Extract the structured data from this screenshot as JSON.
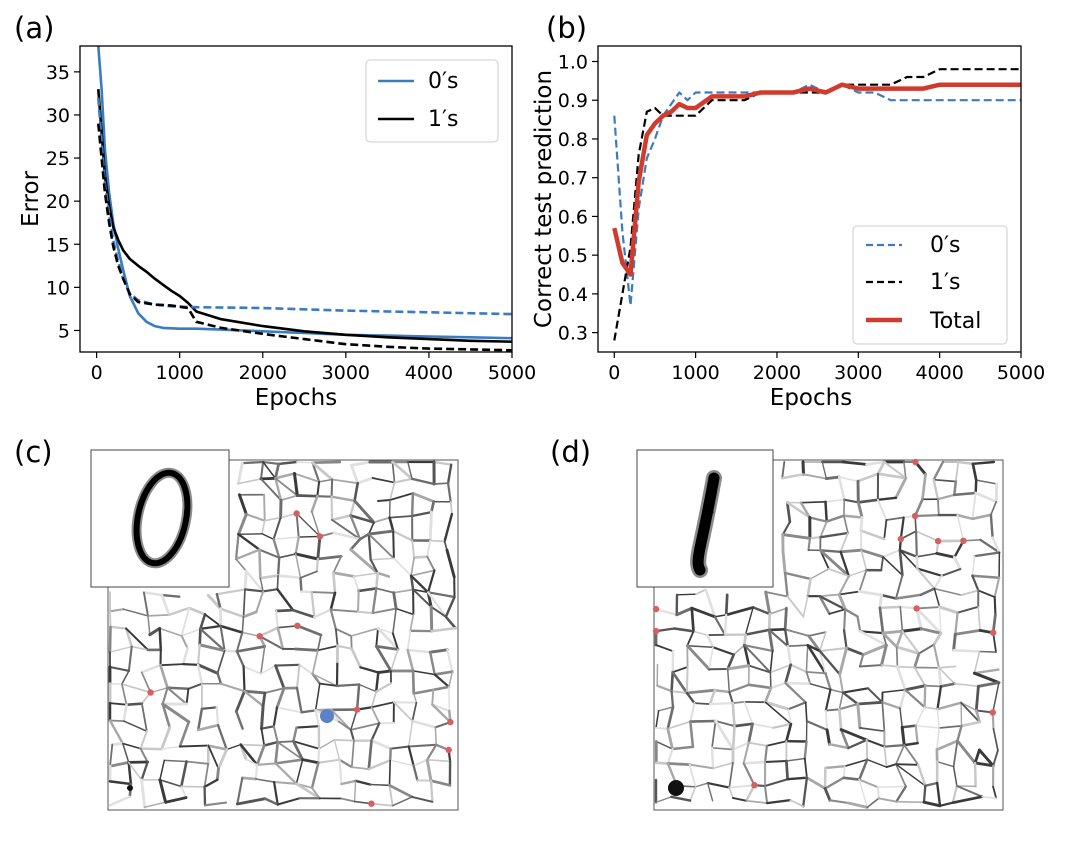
{
  "panels": {
    "a": {
      "label": "(a)"
    },
    "b": {
      "label": "(b)"
    },
    "c": {
      "label": "(c)"
    },
    "d": {
      "label": "(d)"
    }
  },
  "colors": {
    "blue": "#3b7cc0",
    "black": "#000000",
    "red": "#d03b2e",
    "node_red": "#d66060",
    "node_blue": "#5b82c8"
  },
  "chart_data": [
    {
      "id": "a",
      "type": "line",
      "title": "",
      "xlabel": "Epochs",
      "ylabel": "Error",
      "xlim": [
        -200,
        5000
      ],
      "ylim": [
        2.5,
        38
      ],
      "xticks": [
        0,
        1000,
        2000,
        3000,
        4000,
        5000
      ],
      "yticks": [
        5,
        10,
        15,
        20,
        25,
        30,
        35
      ],
      "legend_position": "top-right",
      "grid": false,
      "series": [
        {
          "name": "0′s",
          "legend": true,
          "color": "#3b7cc0",
          "style": "solid",
          "x": [
            20,
            60,
            100,
            150,
            200,
            260,
            320,
            400,
            500,
            600,
            700,
            800,
            1000,
            1200,
            1500,
            2000,
            2500,
            3000,
            3500,
            4000,
            4500,
            5000
          ],
          "y": [
            38,
            33,
            26,
            21,
            17.5,
            14.5,
            12,
            9,
            7,
            6,
            5.5,
            5.3,
            5.2,
            5.2,
            5.1,
            4.9,
            4.7,
            4.5,
            4.4,
            4.3,
            4.2,
            4.1
          ]
        },
        {
          "name": "1′s",
          "legend": true,
          "color": "#000000",
          "style": "solid",
          "x": [
            20,
            60,
            100,
            150,
            200,
            260,
            320,
            400,
            500,
            600,
            700,
            800,
            900,
            1000,
            1100,
            1200,
            1500,
            2000,
            2500,
            3000,
            3500,
            4000,
            4500,
            5000
          ],
          "y": [
            33,
            28,
            23,
            19.5,
            17,
            15.5,
            14.3,
            13.3,
            12.5,
            11.8,
            11,
            10.3,
            9.6,
            9,
            8.2,
            7.2,
            6.3,
            5.5,
            4.9,
            4.5,
            4.2,
            4.0,
            3.8,
            3.7
          ]
        },
        {
          "name": "0′s test",
          "legend": false,
          "color": "#3b7cc0",
          "style": "dashed",
          "x": [
            20,
            60,
            100,
            150,
            200,
            260,
            320,
            400,
            500,
            700,
            900,
            1200,
            2000,
            3000,
            4000,
            5000
          ],
          "y": [
            32,
            27,
            22,
            18.5,
            15.5,
            13,
            11,
            9.3,
            8.5,
            8.0,
            7.8,
            7.7,
            7.6,
            7.3,
            7.1,
            6.9
          ]
        },
        {
          "name": "1′s test",
          "legend": false,
          "color": "#000000",
          "style": "dashed",
          "x": [
            20,
            60,
            100,
            150,
            200,
            260,
            320,
            400,
            500,
            700,
            900,
            1100,
            1200,
            1500,
            2000,
            2500,
            3000,
            3500,
            4000,
            4500,
            5000
          ],
          "y": [
            29,
            25,
            21,
            17.5,
            14.8,
            12.5,
            11,
            9.2,
            8.3,
            8.0,
            7.9,
            7.6,
            6.0,
            5.3,
            4.6,
            4.0,
            3.4,
            3.1,
            2.9,
            2.8,
            2.7
          ]
        }
      ]
    },
    {
      "id": "b",
      "type": "line",
      "title": "",
      "xlabel": "Epochs",
      "ylabel": "Correct test prediction",
      "xlim": [
        -200,
        5000
      ],
      "ylim": [
        0.25,
        1.04
      ],
      "xticks": [
        0,
        1000,
        2000,
        3000,
        4000,
        5000
      ],
      "yticks": [
        0.3,
        0.4,
        0.5,
        0.6,
        0.7,
        0.8,
        0.9,
        1.0
      ],
      "ytick_labels": [
        "0.3",
        "0.4",
        "0.5",
        "0.6",
        "0.7",
        "0.8",
        "0.9",
        "1.0"
      ],
      "legend_position": "lower-right",
      "grid": false,
      "series": [
        {
          "name": "0′s",
          "legend": true,
          "color": "#3b7cc0",
          "style": "dashed",
          "width": 2.2,
          "x": [
            0,
            100,
            200,
            300,
            400,
            500,
            600,
            700,
            800,
            900,
            1000,
            1200,
            1400,
            1600,
            1800,
            2000,
            2200,
            2400,
            2600,
            2800,
            3000,
            3200,
            3400,
            3600,
            3800,
            4000,
            4500,
            5000
          ],
          "y": [
            0.86,
            0.56,
            0.37,
            0.62,
            0.75,
            0.8,
            0.86,
            0.89,
            0.92,
            0.9,
            0.92,
            0.92,
            0.92,
            0.92,
            0.92,
            0.92,
            0.92,
            0.94,
            0.92,
            0.94,
            0.92,
            0.92,
            0.9,
            0.9,
            0.9,
            0.9,
            0.9,
            0.9
          ]
        },
        {
          "name": "1′s",
          "legend": true,
          "color": "#000000",
          "style": "dashed",
          "width": 2.2,
          "x": [
            0,
            100,
            200,
            300,
            400,
            500,
            600,
            700,
            800,
            900,
            1000,
            1200,
            1400,
            1600,
            1800,
            2000,
            2200,
            2400,
            2600,
            2800,
            3000,
            3200,
            3400,
            3600,
            3800,
            4000,
            4500,
            5000
          ],
          "y": [
            0.28,
            0.4,
            0.52,
            0.76,
            0.87,
            0.88,
            0.86,
            0.86,
            0.86,
            0.86,
            0.86,
            0.9,
            0.9,
            0.9,
            0.92,
            0.92,
            0.92,
            0.92,
            0.92,
            0.94,
            0.94,
            0.94,
            0.94,
            0.96,
            0.96,
            0.98,
            0.98,
            0.98
          ]
        },
        {
          "name": "Total",
          "legend": true,
          "color": "#d03b2e",
          "style": "solid",
          "width": 4.5,
          "x": [
            0,
            100,
            200,
            300,
            400,
            500,
            600,
            700,
            800,
            900,
            1000,
            1200,
            1400,
            1600,
            1800,
            2000,
            2200,
            2400,
            2600,
            2800,
            3000,
            3200,
            3400,
            3600,
            3800,
            4000,
            4500,
            5000
          ],
          "y": [
            0.57,
            0.48,
            0.45,
            0.69,
            0.81,
            0.84,
            0.86,
            0.87,
            0.89,
            0.88,
            0.88,
            0.91,
            0.91,
            0.91,
            0.92,
            0.92,
            0.92,
            0.93,
            0.92,
            0.94,
            0.93,
            0.93,
            0.93,
            0.93,
            0.93,
            0.94,
            0.94,
            0.94
          ]
        }
      ]
    }
  ],
  "networks": [
    {
      "id": "c",
      "seed": 7,
      "inset_digit": "0",
      "highlight_color": "#5b82c8",
      "highlight_corner": "center"
    },
    {
      "id": "d",
      "seed": 23,
      "inset_digit": "1",
      "highlight_color": "#111111",
      "highlight_corner": "bottom-left"
    }
  ]
}
